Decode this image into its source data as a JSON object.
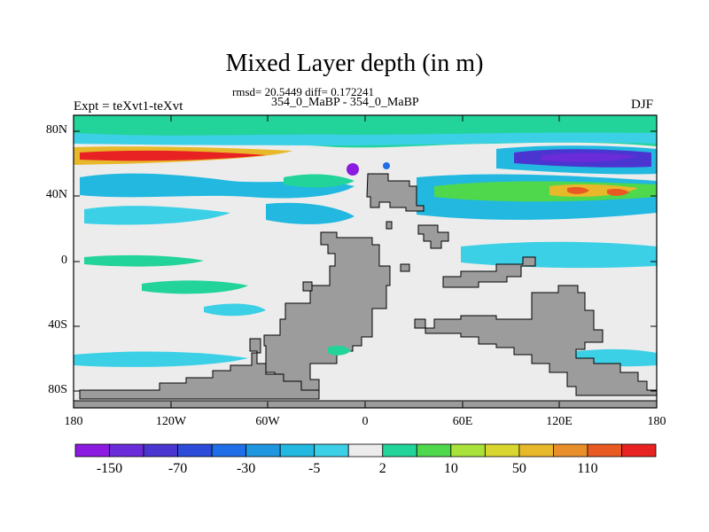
{
  "title": "Mixed Layer depth (in m)",
  "stats": "rmsd= 20.5449 diff= 0.172241",
  "case_label": "354_0_MaBP - 354_0_MaBP",
  "experiment": "Expt = teXvt1-teXvt",
  "season": "DJF",
  "lat_ticks": [
    "80N",
    "40N",
    "0",
    "40S",
    "80S"
  ],
  "lon_ticks": [
    "180",
    "120W",
    "60W",
    "0",
    "60E",
    "120E",
    "180"
  ],
  "colorbar": {
    "labels": [
      "-150",
      "-70",
      "-30",
      "-5",
      "2",
      "10",
      "50",
      "110"
    ],
    "colors": [
      "#8b1be0",
      "#6a2bd8",
      "#4a35d0",
      "#2b4bd8",
      "#1f6ee8",
      "#1f96e0",
      "#22b8e0",
      "#3cd0e6",
      "#ececec",
      "#22d39a",
      "#4fd84b",
      "#a9e23a",
      "#d8d62f",
      "#e8b82b",
      "#e88f2b",
      "#e85a22",
      "#e82222"
    ]
  },
  "map_colors": {
    "land": "#9c9c9c",
    "background_field": "#ececec"
  }
}
